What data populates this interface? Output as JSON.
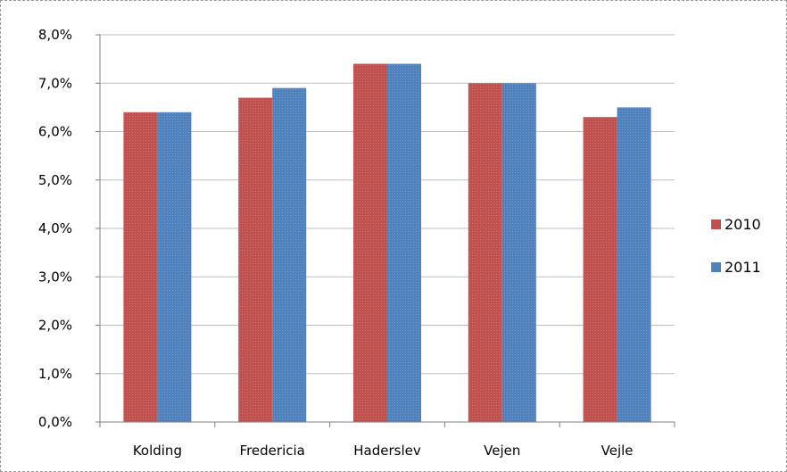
{
  "chart_data": {
    "type": "bar",
    "title": "",
    "xlabel": "",
    "ylabel": "",
    "categories": [
      "Kolding",
      "Fredericia",
      "Haderslev",
      "Vejen",
      "Vejle"
    ],
    "series": [
      {
        "name": "2010",
        "values": [
          6.4,
          6.7,
          7.4,
          7.0,
          6.3
        ],
        "color": "#c0504d"
      },
      {
        "name": "2011",
        "values": [
          6.4,
          6.9,
          7.4,
          7.0,
          6.5
        ],
        "color": "#4f81bd"
      }
    ],
    "ylim": [
      0,
      8
    ],
    "y_ticks": [
      "0,0%",
      "1,0%",
      "2,0%",
      "3,0%",
      "4,0%",
      "5,0%",
      "6,0%",
      "7,0%",
      "8,0%"
    ],
    "grid": true,
    "legend": "right"
  }
}
